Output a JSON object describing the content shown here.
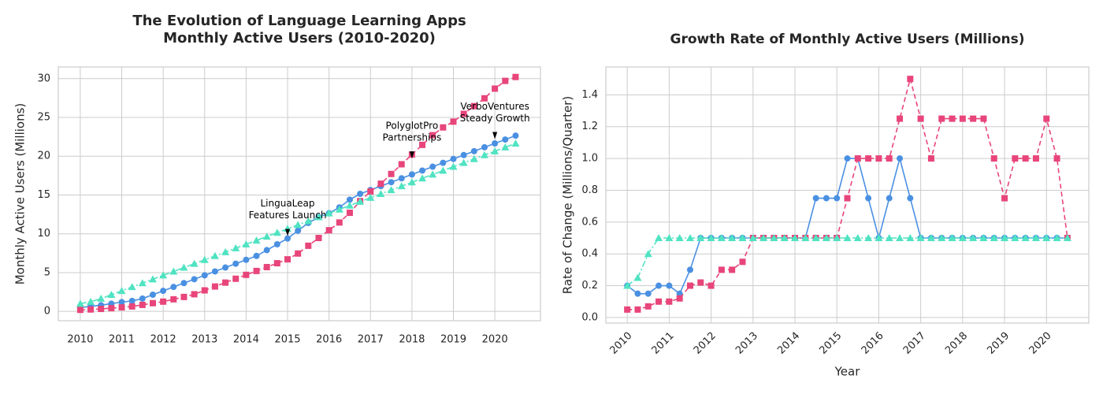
{
  "chart_data": [
    {
      "type": "line",
      "title": [
        "The Evolution of Language Learning Apps",
        "Monthly Active Users (2010-2020)"
      ],
      "y_label": "Monthly Active Users (Millions)",
      "x": [
        2010,
        2010.25,
        2010.5,
        2010.75,
        2011,
        2011.25,
        2011.5,
        2011.75,
        2012,
        2012.25,
        2012.5,
        2012.75,
        2013,
        2013.25,
        2013.5,
        2013.75,
        2014,
        2014.25,
        2014.5,
        2014.75,
        2015,
        2015.25,
        2015.5,
        2015.75,
        2016,
        2016.25,
        2016.5,
        2016.75,
        2017,
        2017.25,
        2017.5,
        2017.75,
        2018,
        2018.25,
        2018.5,
        2018.75,
        2019,
        2019.25,
        2019.5,
        2019.75,
        2020,
        2020.25,
        2020.5
      ],
      "series": [
        {
          "color": "#4a90e2",
          "marker": "circle",
          "linestyle": "solid",
          "values": [
            0.5,
            0.65,
            0.8,
            1.0,
            1.2,
            1.35,
            1.65,
            2.15,
            2.65,
            3.15,
            3.65,
            4.15,
            4.65,
            5.15,
            5.65,
            6.15,
            6.65,
            7.15,
            7.9,
            8.65,
            9.4,
            10.4,
            11.4,
            12.15,
            12.65,
            13.4,
            14.4,
            15.15,
            15.65,
            16.15,
            16.65,
            17.15,
            17.65,
            18.15,
            18.65,
            19.15,
            19.65,
            20.15,
            20.65,
            21.15,
            21.65,
            22.15,
            22.65
          ]
        },
        {
          "color": "#e8457a",
          "marker": "square",
          "linestyle": "dashed",
          "values": [
            0.2,
            0.25,
            0.32,
            0.42,
            0.52,
            0.64,
            0.84,
            1.06,
            1.26,
            1.56,
            1.86,
            2.21,
            2.71,
            3.21,
            3.71,
            4.21,
            4.71,
            5.21,
            5.71,
            6.21,
            6.71,
            7.46,
            8.46,
            9.46,
            10.46,
            11.46,
            12.71,
            14.21,
            15.46,
            16.46,
            17.71,
            18.96,
            20.21,
            21.46,
            22.71,
            23.71,
            24.46,
            25.46,
            26.46,
            27.46,
            28.71,
            29.71,
            30.21
          ]
        },
        {
          "color": "#50e3c2",
          "marker": "triangle",
          "linestyle": "dashdot",
          "values": [
            1.0,
            1.25,
            1.65,
            2.15,
            2.65,
            3.15,
            3.65,
            4.15,
            4.65,
            5.15,
            5.65,
            6.15,
            6.65,
            7.15,
            7.65,
            8.15,
            8.65,
            9.15,
            9.65,
            10.15,
            10.65,
            11.15,
            11.65,
            12.15,
            12.65,
            13.15,
            13.65,
            14.15,
            14.65,
            15.15,
            15.65,
            16.15,
            16.65,
            17.15,
            17.65,
            18.15,
            18.65,
            19.15,
            19.65,
            20.15,
            20.65,
            21.15,
            21.65
          ]
        }
      ],
      "annotations": [
        {
          "text": [
            "LinguaLeap",
            "Features Launch"
          ],
          "x": 2015,
          "y": 9.5
        },
        {
          "text": [
            "PolyglotPro",
            "Partnerships"
          ],
          "x": 2018,
          "y": 19.5
        },
        {
          "text": [
            "VerboVentures",
            "Steady Growth"
          ],
          "x": 2020,
          "y": 22
        }
      ],
      "xlim": [
        2009.47,
        2021.1
      ],
      "xticks": [
        2010,
        2011,
        2012,
        2013,
        2014,
        2015,
        2016,
        2017,
        2018,
        2019,
        2020
      ],
      "ylim": [
        -1.2,
        31.5
      ],
      "yticks": [
        0,
        5,
        10,
        15,
        20,
        25,
        30
      ],
      "grid": true,
      "xtick_rotation": 0
    },
    {
      "type": "line",
      "title": [
        "Growth Rate of Monthly Active Users (Millions)"
      ],
      "x_label": "Year",
      "y_label": "Rate of Change (Millions/Quarter)",
      "x": [
        2010,
        2010.25,
        2010.5,
        2010.75,
        2011,
        2011.25,
        2011.5,
        2011.75,
        2012,
        2012.25,
        2012.5,
        2012.75,
        2013,
        2013.25,
        2013.5,
        2013.75,
        2014,
        2014.25,
        2014.5,
        2014.75,
        2015,
        2015.25,
        2015.5,
        2015.75,
        2016,
        2016.25,
        2016.5,
        2016.75,
        2017,
        2017.25,
        2017.5,
        2017.75,
        2018,
        2018.25,
        2018.5,
        2018.75,
        2019,
        2019.25,
        2019.5,
        2019.75,
        2020,
        2020.25,
        2020.5
      ],
      "series": [
        {
          "color": "#4a90e2",
          "marker": "circle",
          "linestyle": "solid",
          "values": [
            0.2,
            0.15,
            0.15,
            0.2,
            0.2,
            0.15,
            0.3,
            0.5,
            0.5,
            0.5,
            0.5,
            0.5,
            0.5,
            0.5,
            0.5,
            0.5,
            0.5,
            0.5,
            0.75,
            0.75,
            0.75,
            1.0,
            1.0,
            0.75,
            0.5,
            0.75,
            1.0,
            0.75,
            0.5,
            0.5,
            0.5,
            0.5,
            0.5,
            0.5,
            0.5,
            0.5,
            0.5,
            0.5,
            0.5,
            0.5,
            0.5,
            0.5,
            0.5
          ]
        },
        {
          "color": "#e8457a",
          "marker": "square",
          "linestyle": "dashed",
          "values": [
            0.05,
            0.05,
            0.07,
            0.1,
            0.1,
            0.12,
            0.2,
            0.22,
            0.2,
            0.3,
            0.3,
            0.35,
            0.5,
            0.5,
            0.5,
            0.5,
            0.5,
            0.5,
            0.5,
            0.5,
            0.5,
            0.75,
            1.0,
            1.0,
            1.0,
            1.0,
            1.25,
            1.5,
            1.25,
            1.0,
            1.25,
            1.25,
            1.25,
            1.25,
            1.25,
            1.0,
            0.75,
            1.0,
            1.0,
            1.0,
            1.25,
            1.0,
            0.5
          ]
        },
        {
          "color": "#50e3c2",
          "marker": "triangle",
          "linestyle": "dashdot",
          "values": [
            0.2,
            0.25,
            0.4,
            0.5,
            0.5,
            0.5,
            0.5,
            0.5,
            0.5,
            0.5,
            0.5,
            0.5,
            0.5,
            0.5,
            0.5,
            0.5,
            0.5,
            0.5,
            0.5,
            0.5,
            0.5,
            0.5,
            0.5,
            0.5,
            0.5,
            0.5,
            0.5,
            0.5,
            0.5,
            0.5,
            0.5,
            0.5,
            0.5,
            0.5,
            0.5,
            0.5,
            0.5,
            0.5,
            0.5,
            0.5,
            0.5,
            0.5,
            0.5
          ]
        }
      ],
      "xlim": [
        2009.49,
        2021.01
      ],
      "xticks": [
        2010,
        2011,
        2012,
        2013,
        2014,
        2015,
        2016,
        2017,
        2018,
        2019,
        2020
      ],
      "ylim": [
        -0.035,
        1.575
      ],
      "yticks": [
        {
          "value": 0,
          "label": "0.0"
        },
        0.2,
        0.4,
        0.6,
        0.8,
        {
          "value": 1,
          "label": "1.0"
        },
        1.2,
        1.4
      ],
      "grid": true,
      "xtick_rotation": -45
    }
  ]
}
